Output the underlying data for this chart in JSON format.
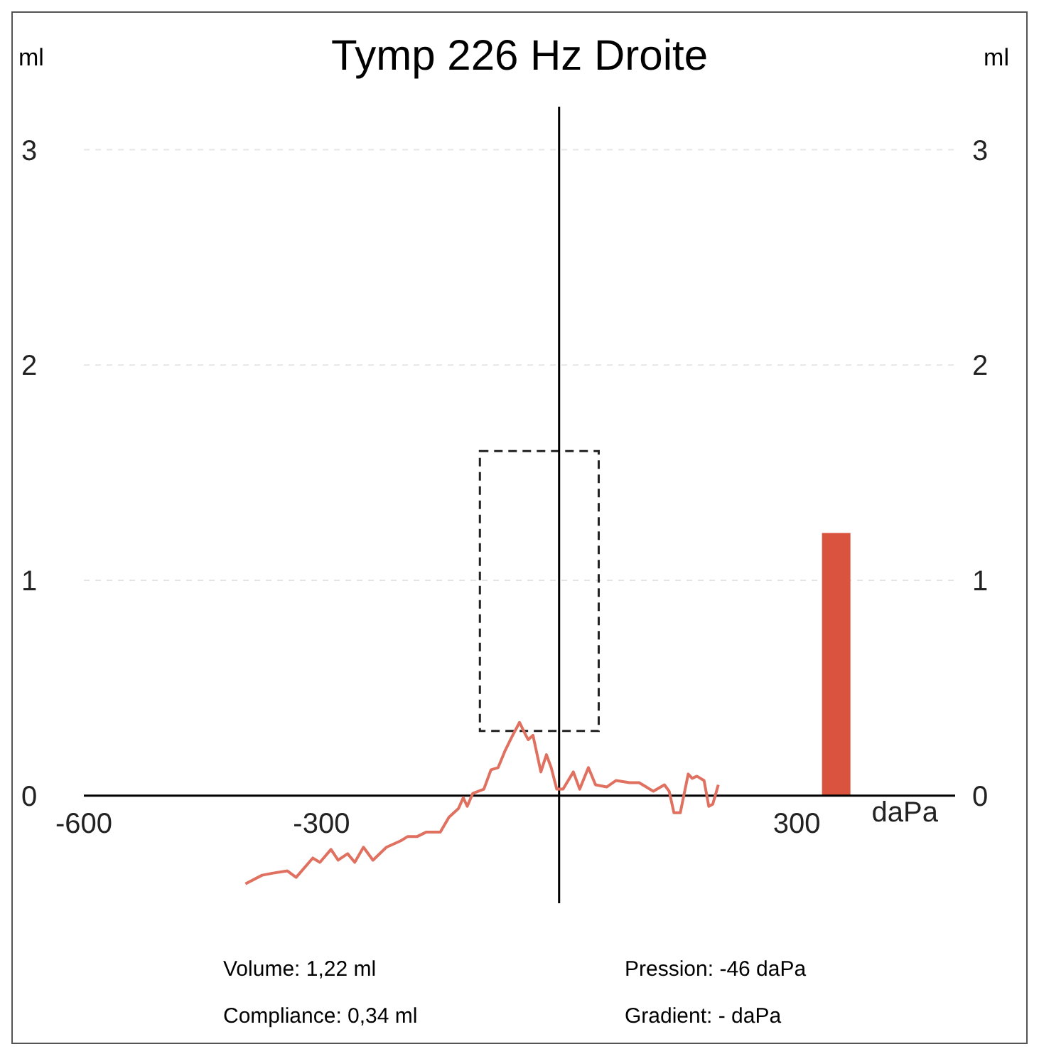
{
  "chart_data": {
    "type": "line",
    "title": "Tymp 226 Hz Droite",
    "xlabel": "daPa",
    "ylabel": "ml",
    "y2label": "ml",
    "xlim": [
      -600,
      500
    ],
    "xticks": [
      -600,
      -300,
      300
    ],
    "ylim": [
      -0.5,
      3.2
    ],
    "yticks": [
      0,
      1,
      2,
      3
    ],
    "y2lim": [
      -0.5,
      3.2
    ],
    "y2ticks": [
      0,
      1,
      2,
      3
    ],
    "grid": "y",
    "marker": "none",
    "line_style": "solid",
    "series": [
      {
        "color": "#e0705f",
        "x": [
          -396,
          -375,
          -361,
          -343,
          -332,
          -311,
          -302,
          -288,
          -279,
          -267,
          -258,
          -247,
          -235,
          -218,
          -200,
          -191,
          -179,
          -168,
          -150,
          -139,
          -127,
          -121,
          -116,
          -109,
          -95,
          -86,
          -77,
          -68,
          -60,
          -50,
          -42,
          -39,
          -33,
          -23,
          -16,
          -10,
          -3,
          5,
          18,
          26,
          37,
          46,
          60,
          72,
          89,
          101,
          110,
          119,
          133,
          139,
          145,
          153,
          163,
          168,
          174,
          183,
          189,
          194,
          201
        ],
        "values": [
          -0.41,
          -0.37,
          -0.36,
          -0.35,
          -0.38,
          -0.29,
          -0.31,
          -0.25,
          -0.3,
          -0.27,
          -0.31,
          -0.24,
          -0.3,
          -0.24,
          -0.21,
          -0.19,
          -0.19,
          -0.17,
          -0.17,
          -0.1,
          -0.06,
          -0.01,
          -0.05,
          0.01,
          0.03,
          0.12,
          0.13,
          0.21,
          0.27,
          0.34,
          0.28,
          0.26,
          0.28,
          0.11,
          0.19,
          0.13,
          0.03,
          0.03,
          0.11,
          0.03,
          0.13,
          0.05,
          0.04,
          0.07,
          0.06,
          0.06,
          0.04,
          0.02,
          0.05,
          0.02,
          -0.08,
          -0.08,
          0.1,
          0.08,
          0.09,
          0.07,
          -0.05,
          -0.04,
          0.05
        ]
      },
      {
        "type": "bar",
        "color": "#d9533f",
        "x": [
          350
        ],
        "values": [
          1.22
        ]
      }
    ],
    "ref_lines": [
      {
        "axis": "x",
        "value": 0,
        "color": "#000000"
      }
    ],
    "annotations": [
      "Volume: 1,22 ml",
      "Pression: -46 daPa",
      "Compliance: 0,34 ml",
      "Gradient: - daPa"
    ]
  }
}
